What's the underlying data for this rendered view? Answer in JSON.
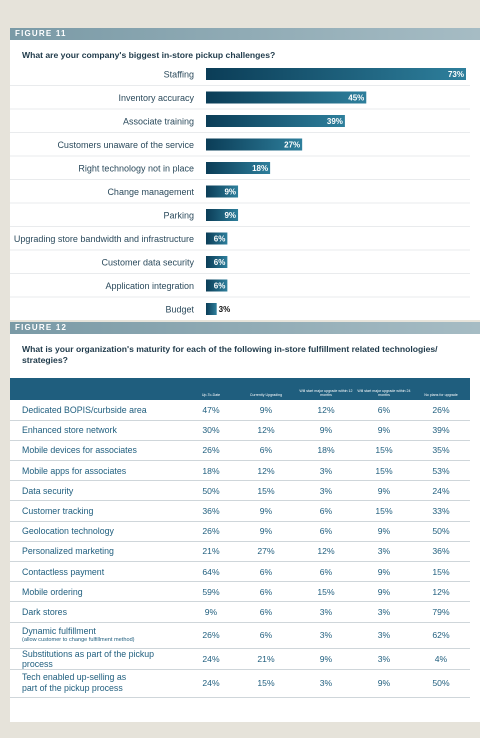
{
  "figure11": {
    "label": "FIGURE 11",
    "question": "What are your company's biggest in-store pickup challenges?",
    "chart_data": {
      "type": "bar",
      "orientation": "horizontal",
      "categories": [
        "Staffing",
        "Inventory accuracy",
        "Associate training",
        "Customers unaware of the service",
        "Right technology not in place",
        "Change management",
        "Parking",
        "Upgrading store bandwidth and infrastructure",
        "Customer data security",
        "Application integration",
        "Budget"
      ],
      "values": [
        73,
        45,
        39,
        27,
        18,
        9,
        9,
        6,
        6,
        6,
        3
      ],
      "value_suffix": "%",
      "xlim": [
        0,
        73
      ],
      "bar_color_start": "#0b3d57",
      "bar_color_end": "#2e7f9c"
    }
  },
  "figure12": {
    "label": "FIGURE 12",
    "question": "What is your organization's maturity for each of the following in-store fulfillment related technologies/ strategies?",
    "columns": [
      "Up-To-Date",
      "Currently Upgrading",
      "Will start major upgrade within 12 months",
      "Will start major upgrade within 24 months",
      "No plans for upgrade"
    ],
    "rows": [
      {
        "label": "Dedicated BOPIS/curbside area",
        "values": [
          "47%",
          "9%",
          "12%",
          "6%",
          "26%"
        ]
      },
      {
        "label": "Enhanced store network",
        "values": [
          "30%",
          "12%",
          "9%",
          "9%",
          "39%"
        ]
      },
      {
        "label": "Mobile devices for associates",
        "values": [
          "26%",
          "6%",
          "18%",
          "15%",
          "35%"
        ]
      },
      {
        "label": "Mobile apps for associates",
        "values": [
          "18%",
          "12%",
          "3%",
          "15%",
          "53%"
        ]
      },
      {
        "label": "Data security",
        "values": [
          "50%",
          "15%",
          "3%",
          "9%",
          "24%"
        ]
      },
      {
        "label": "Customer tracking",
        "values": [
          "36%",
          "9%",
          "6%",
          "15%",
          "33%"
        ]
      },
      {
        "label": "Geolocation technology",
        "values": [
          "26%",
          "9%",
          "6%",
          "9%",
          "50%"
        ]
      },
      {
        "label": "Personalized marketing",
        "values": [
          "21%",
          "27%",
          "12%",
          "3%",
          "36%"
        ]
      },
      {
        "label": "Contactless payment",
        "values": [
          "64%",
          "6%",
          "6%",
          "9%",
          "15%"
        ]
      },
      {
        "label": "Mobile ordering",
        "values": [
          "59%",
          "6%",
          "15%",
          "9%",
          "12%"
        ]
      },
      {
        "label": "Dark stores",
        "values": [
          "9%",
          "6%",
          "3%",
          "3%",
          "79%"
        ]
      },
      {
        "label": "Dynamic fulfillment",
        "sub": "(allow customer to change fulfillment method)",
        "values": [
          "26%",
          "6%",
          "3%",
          "3%",
          "62%"
        ]
      },
      {
        "label": "Substitutions as part of the pickup process",
        "values": [
          "24%",
          "21%",
          "9%",
          "3%",
          "4%"
        ]
      },
      {
        "label": "Tech enabled up-selling as",
        "label2": "part of the pickup process",
        "values": [
          "24%",
          "15%",
          "3%",
          "9%",
          "50%"
        ]
      }
    ]
  }
}
